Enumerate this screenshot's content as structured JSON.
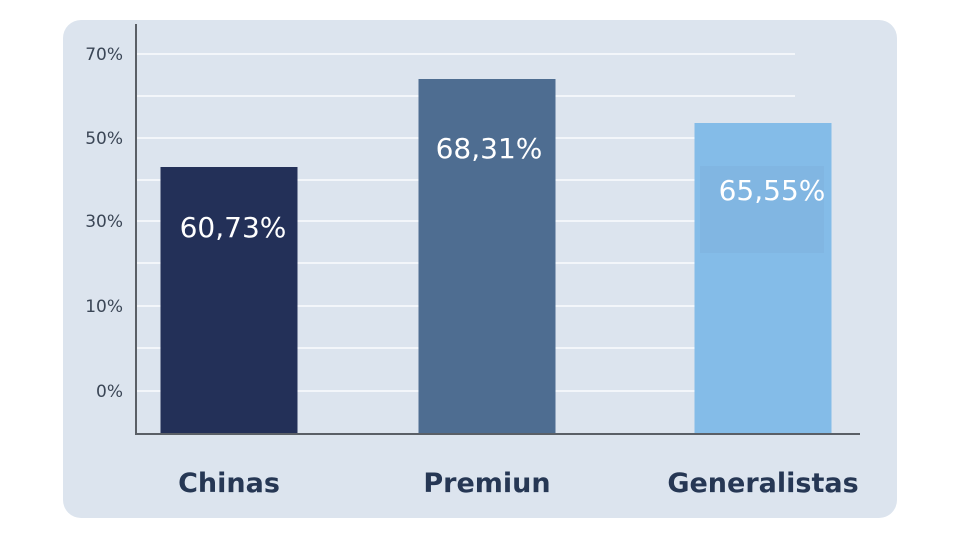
{
  "chart_data": {
    "type": "bar",
    "categories": [
      "Chinas",
      "Premiun",
      "Generalistas"
    ],
    "values": [
      60.73,
      68.31,
      65.55
    ],
    "data_labels": [
      "60,73%",
      "68,31%",
      "65,55%"
    ],
    "y_tick_labels": [
      "70%",
      "50%",
      "30%",
      "10%",
      "0%"
    ],
    "title": "",
    "xlabel": "",
    "ylabel": "",
    "grid": true,
    "colors": [
      "#233058",
      "#4e6d91",
      "#84bce8"
    ],
    "background": "#dce4ee",
    "gridline_color": "#f3f6fa",
    "axis_color": "#5a5f66"
  }
}
